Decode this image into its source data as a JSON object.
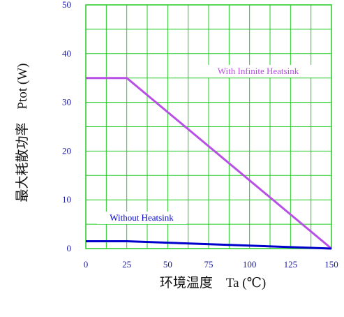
{
  "chart_data": {
    "type": "line",
    "xlabel": "环境温度　Ta (℃)",
    "ylabel": "最大耗散功率　Ptot (W)",
    "xlim": [
      0,
      150
    ],
    "ylim": [
      0,
      50
    ],
    "x_ticks": [
      0,
      25,
      50,
      75,
      100,
      125,
      150
    ],
    "y_ticks": [
      0,
      10,
      20,
      30,
      40,
      50
    ],
    "grid": true,
    "series": [
      {
        "name": "With Infinite Heatsink",
        "color": "#b84fe6",
        "points": [
          [
            0,
            35
          ],
          [
            25,
            35
          ],
          [
            150,
            0
          ]
        ]
      },
      {
        "name": "Without Heatsink",
        "color": "#0000cc",
        "points": [
          [
            0,
            1.5
          ],
          [
            25,
            1.5
          ],
          [
            150,
            0
          ]
        ]
      }
    ]
  },
  "colors": {
    "grid": "#22cc22",
    "tick_text": "#1a1a99"
  }
}
